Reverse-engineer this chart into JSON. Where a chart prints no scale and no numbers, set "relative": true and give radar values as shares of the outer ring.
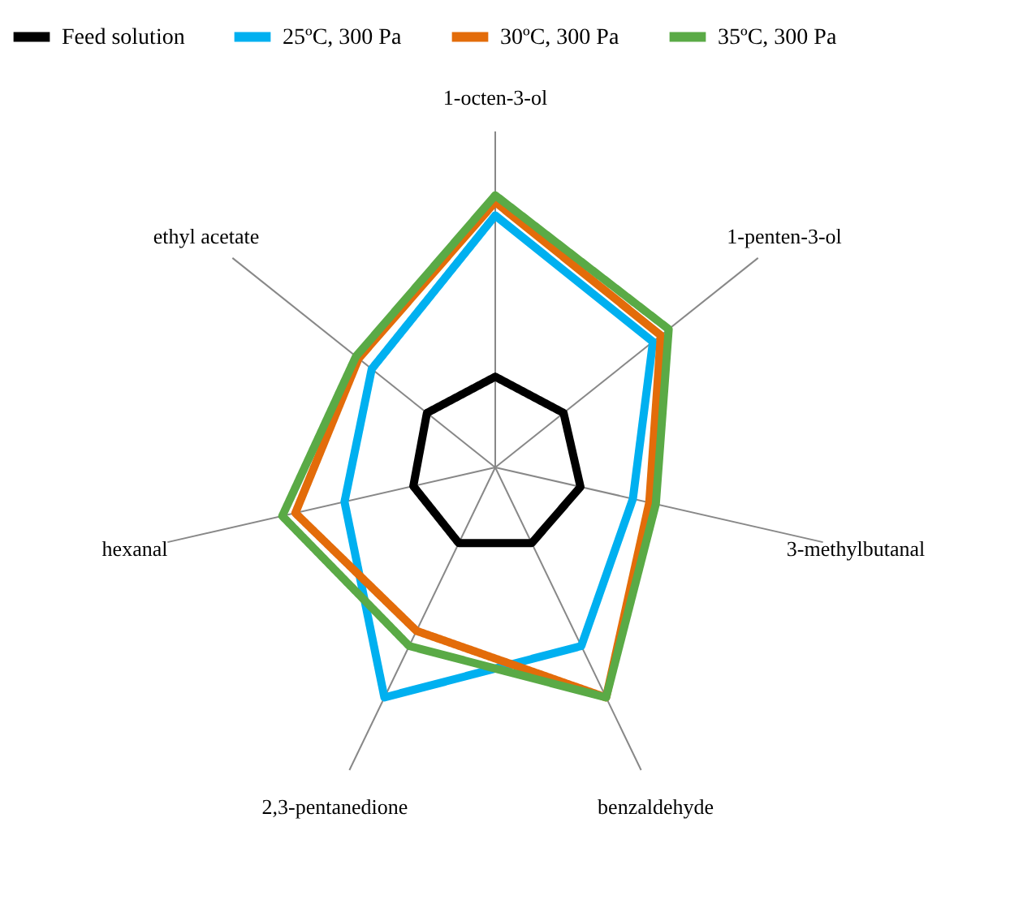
{
  "chart_data": {
    "type": "radar",
    "relative": true,
    "legend": "top",
    "line_style": "solid",
    "marker": "none",
    "categories": [
      "1-octen-3-ol",
      "1-penten-3-ol",
      "3-methylbutanal",
      "benzaldehyde",
      "2,3-pentanedione",
      "hexanal",
      "ethyl acetate"
    ],
    "series": [
      {
        "name": "Feed solution",
        "color": "#000000",
        "values": [
          0.27,
          0.26,
          0.26,
          0.25,
          0.25,
          0.25,
          0.26
        ]
      },
      {
        "name": "25ºC, 300 Pa",
        "color": "#00b0f0",
        "values": [
          0.75,
          0.6,
          0.42,
          0.59,
          0.76,
          0.46,
          0.47
        ]
      },
      {
        "name": "30ºC, 300 Pa",
        "color": "#e36c0a",
        "values": [
          0.79,
          0.63,
          0.47,
          0.76,
          0.54,
          0.61,
          0.52
        ]
      },
      {
        "name": "35ºC, 300 Pa",
        "color": "#5aaa46",
        "values": [
          0.81,
          0.66,
          0.49,
          0.76,
          0.59,
          0.65,
          0.53
        ]
      }
    ]
  }
}
